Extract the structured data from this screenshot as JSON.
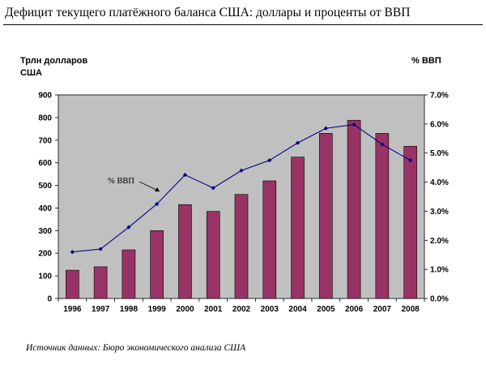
{
  "title": "Дефицит текущего платёжного баланса США: доллары и проценты от ВВП",
  "source": "Источник данных: Бюро экономического анализа США",
  "chart_data": {
    "type": "bar",
    "categories": [
      "1996",
      "1997",
      "1998",
      "1999",
      "2000",
      "2001",
      "2002",
      "2003",
      "2004",
      "2005",
      "2006",
      "2007",
      "2008"
    ],
    "series": [
      {
        "axis": "left",
        "type": "bar",
        "color": "#993366",
        "values": [
          125,
          140,
          215,
          300,
          415,
          385,
          460,
          520,
          625,
          730,
          788,
          730,
          673
        ]
      },
      {
        "name": "% ВВП",
        "axis": "right",
        "type": "line",
        "color": "#000080",
        "values": [
          1.6,
          1.7,
          2.45,
          3.25,
          4.25,
          3.8,
          4.4,
          4.75,
          5.35,
          5.85,
          5.98,
          5.3,
          4.75
        ]
      }
    ],
    "ylabel_left": [
      "Трлн долларов",
      "США"
    ],
    "ylabel_right": "% ВВП",
    "ylim_left": [
      0,
      900
    ],
    "yticks_left": [
      "0",
      "100",
      "200",
      "300",
      "400",
      "500",
      "600",
      "700",
      "800",
      "900"
    ],
    "ylim_right": [
      0,
      7
    ],
    "yticks_right": [
      "0.0%",
      "1.0%",
      "2.0%",
      "3.0%",
      "4.0%",
      "5.0%",
      "6.0%",
      "7.0%"
    ],
    "annotation": "% ВВП",
    "plot_background": "#c0c0c0",
    "grid": false
  }
}
